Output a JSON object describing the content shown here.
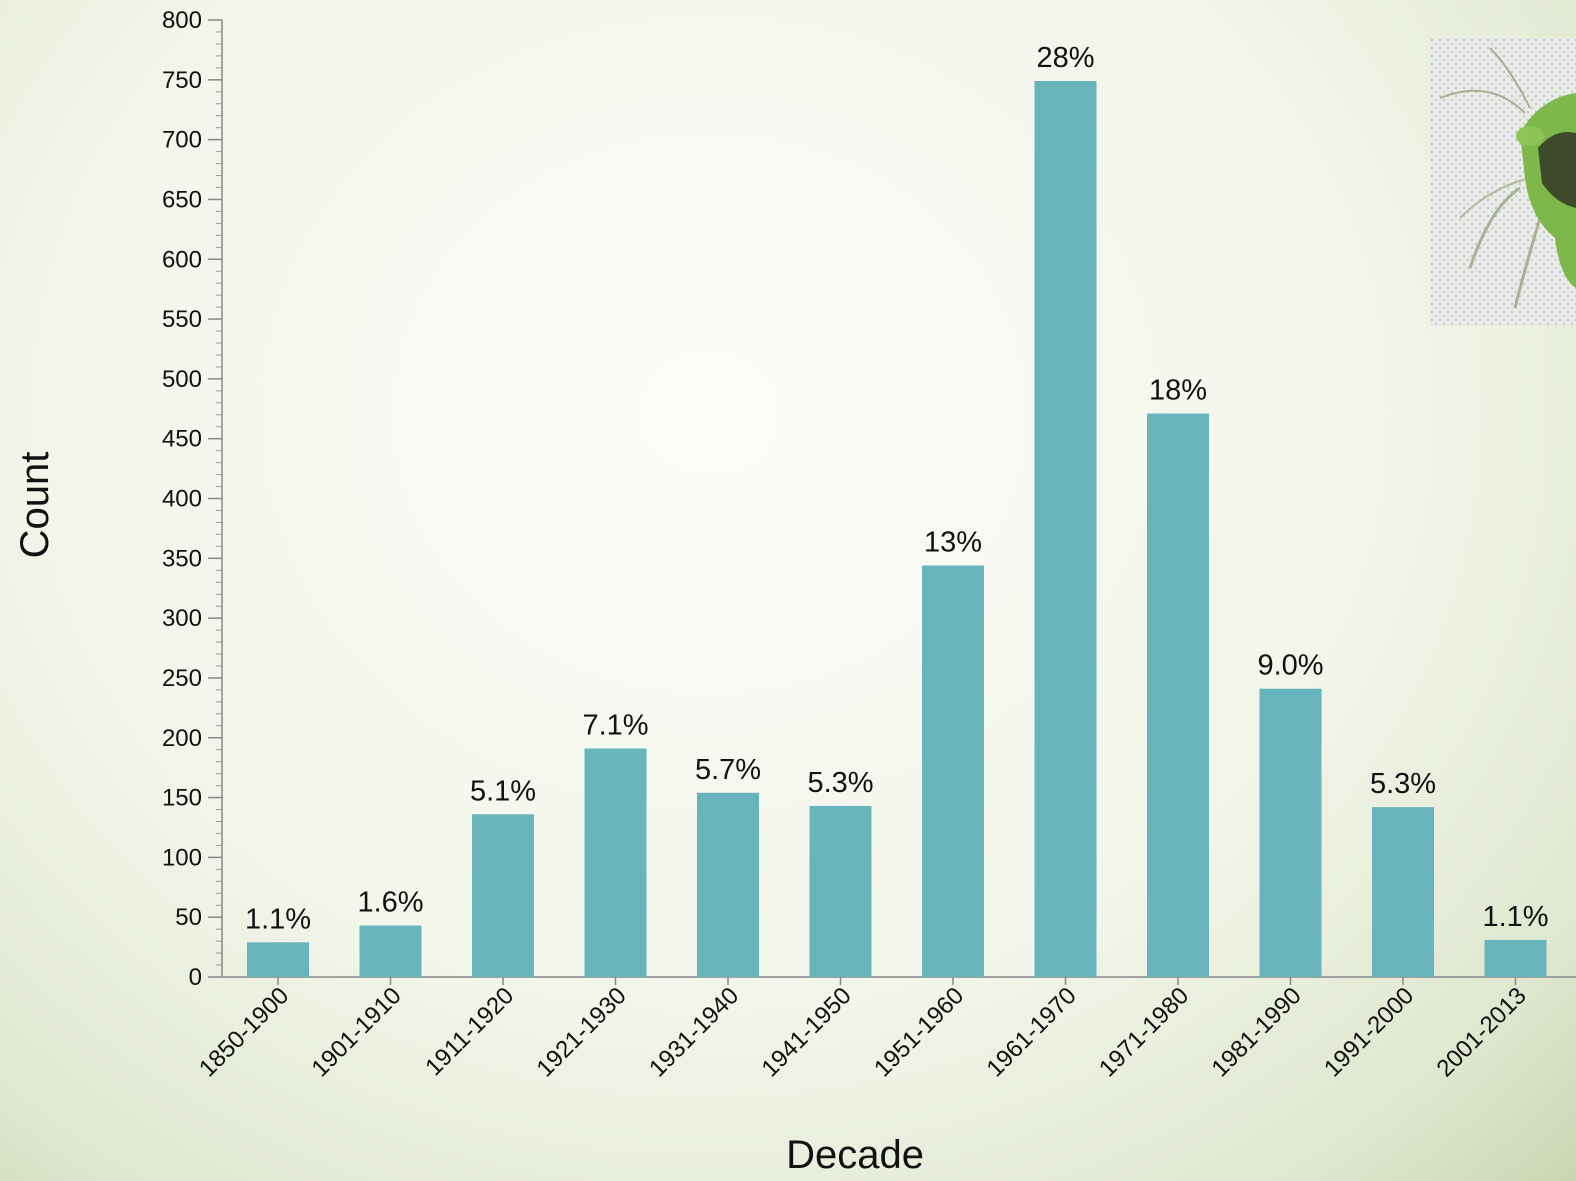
{
  "chart_data": {
    "type": "bar",
    "categories": [
      "1850-1900",
      "1901-1910",
      "1911-1920",
      "1921-1930",
      "1931-1940",
      "1941-1950",
      "1951-1960",
      "1961-1970",
      "1971-1980",
      "1981-1990",
      "1991-2000",
      "2001-2013"
    ],
    "values": [
      29,
      43,
      136,
      191,
      154,
      143,
      344,
      749,
      471,
      241,
      142,
      31
    ],
    "data_labels": [
      "1.1%",
      "1.6%",
      "5.1%",
      "7.1%",
      "5.7%",
      "5.3%",
      "13%",
      "28%",
      "18%",
      "9.0%",
      "5.3%",
      "1.1%"
    ],
    "xlabel": "Decade",
    "ylabel": "Count",
    "ylim": [
      0,
      800
    ],
    "yticks": [
      0,
      50,
      100,
      150,
      200,
      250,
      300,
      350,
      400,
      450,
      500,
      550,
      600,
      650,
      700,
      750,
      800
    ],
    "bar_color": "#67b4bd",
    "grid": false
  },
  "image": {
    "name": "green-insect-photo"
  }
}
